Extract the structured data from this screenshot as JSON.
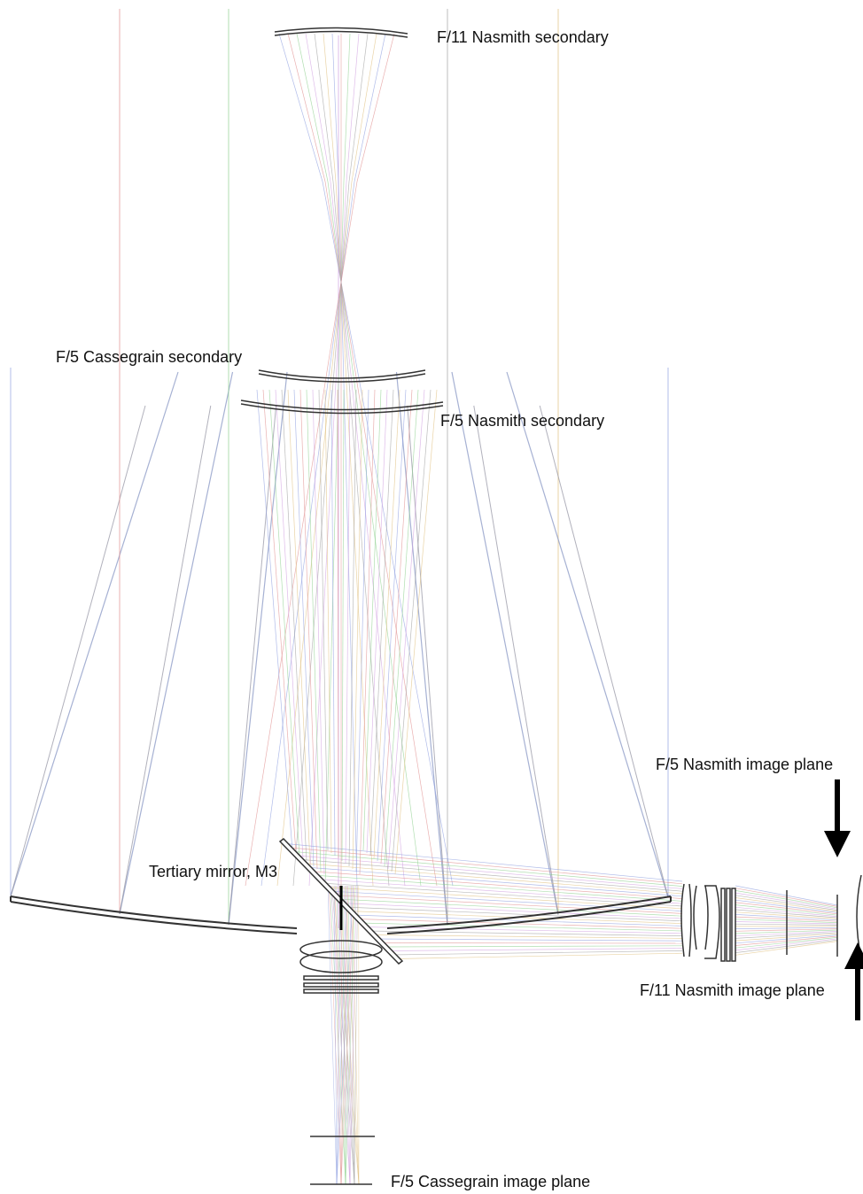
{
  "nodes": [
    {
      "label": "F/11 Nasmith secondary"
    },
    {
      "label": "F/5 Cassegrain secondary"
    },
    {
      "label": "F/5 Nasmith secondary"
    },
    {
      "label": "F/5 Nasmith image plane"
    },
    {
      "label": "Tertiary mirror, M3"
    },
    {
      "label": "F/11 Nasmith image plane"
    },
    {
      "label": "F/5 Cassegrain image plane"
    }
  ]
}
